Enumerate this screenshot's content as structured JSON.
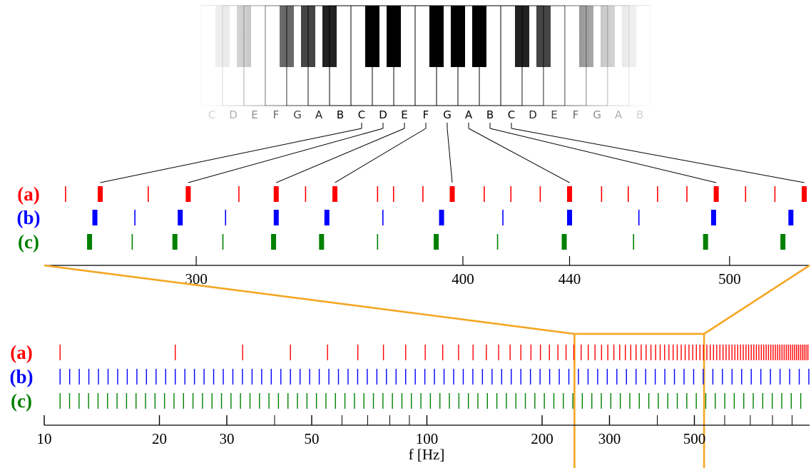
{
  "colors": {
    "a": "#ff0000",
    "b": "#0000ff",
    "c": "#008000",
    "zoom": "#f5a623",
    "axis": "#000000"
  },
  "keyboard": {
    "notes": [
      "C",
      "D",
      "E",
      "F",
      "G",
      "A",
      "B",
      "C",
      "D",
      "E",
      "F",
      "G",
      "A",
      "B",
      "C",
      "D",
      "E",
      "F",
      "G",
      "A",
      "B"
    ],
    "connected_notes": [
      "C",
      "D",
      "E",
      "F",
      "G",
      "A",
      "B",
      "C"
    ]
  },
  "rows": [
    {
      "id": "a",
      "label": "(a)"
    },
    {
      "id": "b",
      "label": "(b)"
    },
    {
      "id": "c",
      "label": "(c)"
    }
  ],
  "chart_data": [
    {
      "type": "scatter",
      "name_hint": "zoomed linear view",
      "xlabel": "",
      "xlim": [
        243,
        530
      ],
      "ticks": [
        300,
        400,
        440,
        500
      ],
      "tick_labels": [
        "300",
        "400",
        "440",
        "500"
      ],
      "series": [
        {
          "id": "a",
          "major": [
            264,
            297,
            330,
            352,
            396,
            440,
            495,
            528
          ],
          "minor": [
            251,
            282,
            316,
            341,
            368,
            374,
            385,
            408,
            418,
            429,
            452,
            462,
            473,
            484,
            506,
            517,
            539
          ]
        },
        {
          "id": "b",
          "major": [
            262,
            294,
            330,
            349,
            392,
            440,
            494,
            523
          ],
          "minor": [
            277,
            311,
            370,
            415,
            466
          ]
        },
        {
          "id": "c",
          "major": [
            260,
            292,
            329,
            347,
            390,
            438,
            491,
            520
          ],
          "minor": [
            276,
            310,
            368,
            413,
            464
          ]
        }
      ]
    },
    {
      "type": "scatter",
      "name_hint": "full log view",
      "xlabel": "f [Hz]",
      "xscale": "log",
      "xlim": [
        10,
        1000
      ],
      "ticks": [
        10,
        20,
        30,
        40,
        50,
        60,
        70,
        80,
        90,
        100,
        200,
        300,
        400,
        500,
        600,
        700,
        800,
        900
      ],
      "tick_labels": [
        "10",
        "20",
        "30",
        "50",
        "100",
        "200",
        "300",
        "500"
      ],
      "labeled_ticks": [
        10,
        20,
        30,
        50,
        100,
        200,
        300,
        500
      ],
      "series": [
        {
          "id": "a",
          "description_values": "harmonics n*11 Hz",
          "fundamental": 11
        },
        {
          "id": "b",
          "description_values": "12-TET semitones from 11 Hz",
          "base": 11,
          "step": "2^(1/12)"
        },
        {
          "id": "c",
          "description_values": "equal steps from 11 Hz",
          "base": 11,
          "step": 1.0588
        }
      ]
    }
  ],
  "zoom_box": {
    "xlim": [
      243,
      530
    ]
  }
}
